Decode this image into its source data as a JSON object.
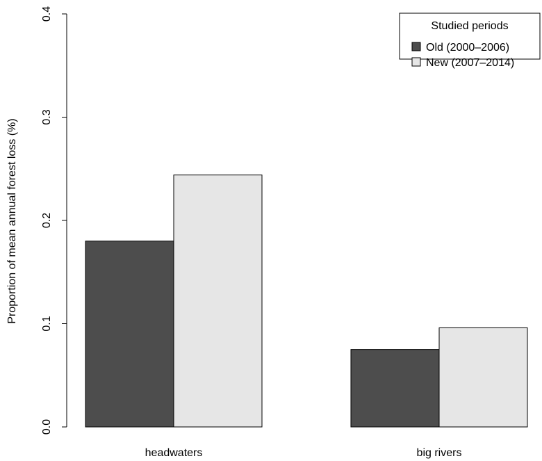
{
  "chart_data": {
    "type": "bar",
    "categories": [
      "headwaters",
      "big rivers"
    ],
    "series": [
      {
        "name": "Old (2000–2006)",
        "values": [
          0.18,
          0.075
        ],
        "color": "#4d4d4d"
      },
      {
        "name": "New (2007–2014)",
        "values": [
          0.244,
          0.096
        ],
        "color": "#e6e6e6"
      }
    ],
    "ylabel": "Proportion of mean annual forest loss (%)",
    "ylim": [
      0,
      0.4
    ],
    "yticks": [
      "0.0",
      "0.1",
      "0.2",
      "0.3",
      "0.4"
    ],
    "legend": {
      "title": "Studied periods",
      "position": "top-right"
    },
    "grid": false
  }
}
